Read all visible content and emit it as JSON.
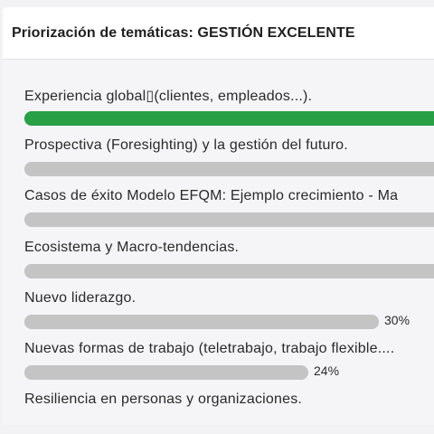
{
  "header": {
    "title": "Priorización de temáticas: GESTIÓN EXCELENTE"
  },
  "colors": {
    "accent_green": "#28a046",
    "bar_gray": "#c4c4c4"
  },
  "items": [
    {
      "label": "Experiencia global▯(clientes, empleados...).",
      "fill": 1.0,
      "color": "#28a046",
      "percent": ""
    },
    {
      "label": "Prospectiva (Foresighting) y la gestión del futuro.",
      "fill": 1.0,
      "color": "#c4c4c4",
      "percent": ""
    },
    {
      "label": "Casos de éxito Modelo EFQM: Ejemplo crecimiento - Ma",
      "fill": 1.0,
      "color": "#c4c4c4",
      "percent": ""
    },
    {
      "label": "Ecosistema y Macro-tendencias.",
      "fill": 1.0,
      "color": "#c4c4c4",
      "percent": ""
    },
    {
      "label": "Nuevo liderazgo.",
      "fill": 0.3,
      "color": "#c4c4c4",
      "percent": "30%"
    },
    {
      "label": "Nuevas formas de trabajo (teletrabajo, trabajo flexible....",
      "fill": 0.24,
      "color": "#c4c4c4",
      "percent": "24%"
    },
    {
      "label": "Resiliencia en personas y organizaciones.",
      "fill": null,
      "color": "#c4c4c4",
      "percent": ""
    }
  ]
}
